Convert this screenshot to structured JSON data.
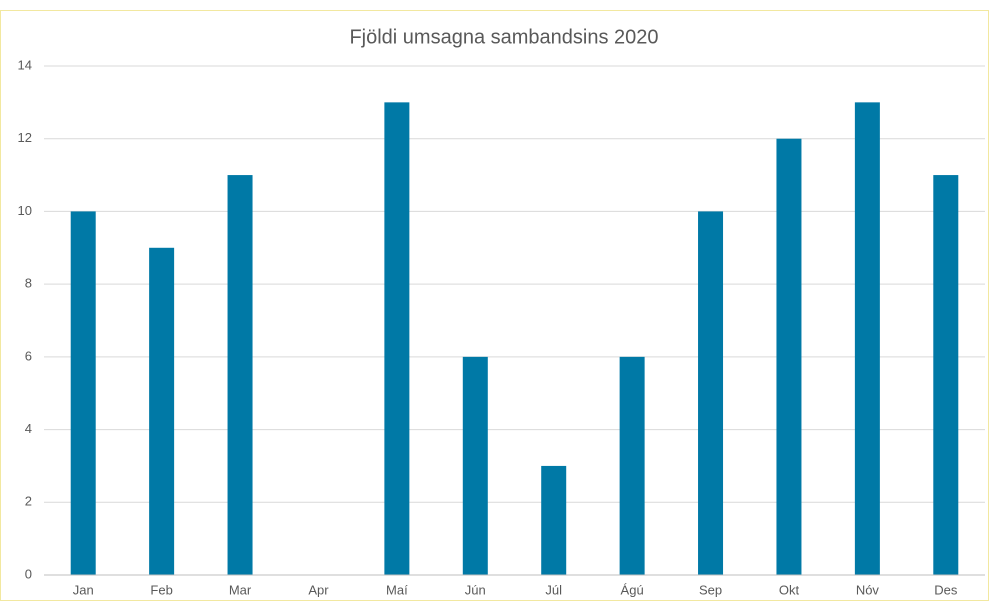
{
  "chart_data": {
    "type": "bar",
    "title": "Fjöldi umsagna sambandsins 2020",
    "categories": [
      "Jan",
      "Feb",
      "Mar",
      "Apr",
      "Maí",
      "Jún",
      "Júl",
      "Ágú",
      "Sep",
      "Okt",
      "Nóv",
      "Des"
    ],
    "values": [
      10,
      9,
      11,
      0,
      13,
      6,
      3,
      6,
      10,
      12,
      13,
      11
    ],
    "color": "#0079a6",
    "ylim": [
      0,
      14
    ],
    "yticks": [
      0,
      2,
      4,
      6,
      8,
      10,
      12,
      14
    ],
    "grid": true
  }
}
